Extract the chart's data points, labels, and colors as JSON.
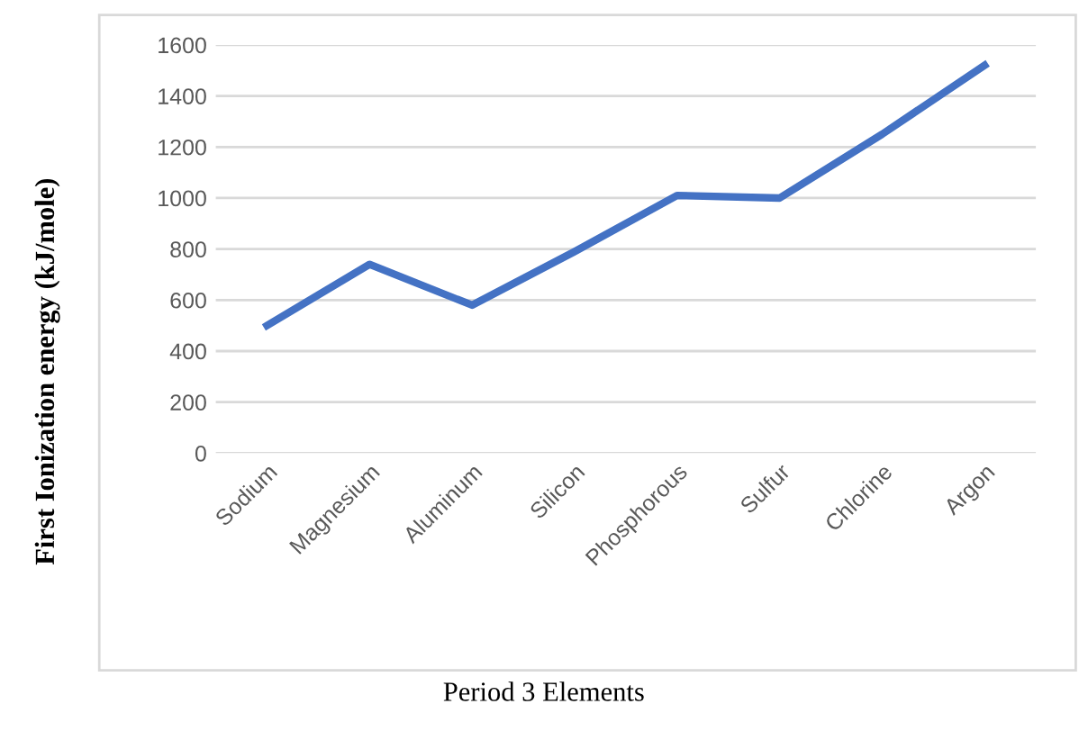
{
  "chart_data": {
    "type": "line",
    "xlabel": "Period 3 Elements",
    "ylabel": "First Ionization energy (kJ/mole)",
    "categories": [
      "Sodium",
      "Magnesium",
      "Aluminum",
      "Silicon",
      "Phosphorous",
      "Sulfur",
      "Chlorine",
      "Argon"
    ],
    "series": [
      {
        "color": "#4472c4",
        "values": [
          500,
          740,
          580,
          790,
          1010,
          1000,
          1250,
          1520
        ]
      }
    ],
    "ylim": [
      0,
      1600
    ],
    "yticks": [
      0,
      200,
      400,
      600,
      800,
      1000,
      1200,
      1400,
      1600
    ],
    "grid": "y",
    "legend": false,
    "line_style": "solid",
    "marker": "none"
  }
}
